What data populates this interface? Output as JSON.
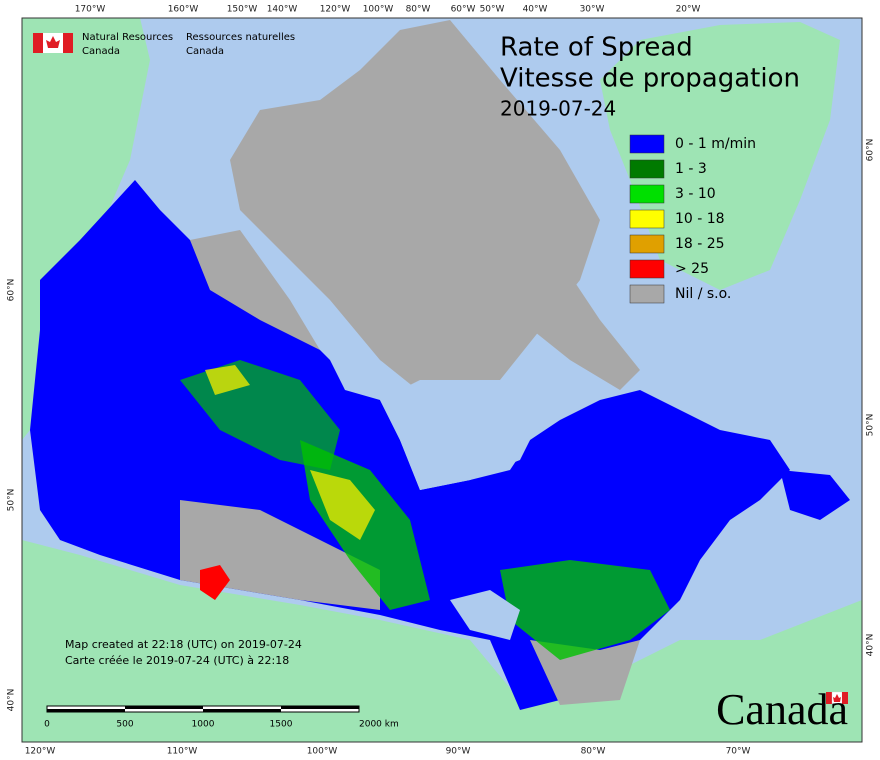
{
  "agency": {
    "english": [
      "Natural Resources",
      "Canada"
    ],
    "french": [
      "Ressources naturelles",
      "Canada"
    ]
  },
  "title": {
    "lines": [
      "Rate of Spread",
      "Vitesse de propagation"
    ],
    "date": "2019-07-24"
  },
  "legend": [
    {
      "label": "0 - 1 m/min",
      "color": "#0000ff"
    },
    {
      "label": "1 - 3",
      "color": "#007a00"
    },
    {
      "label": "3 - 10",
      "color": "#00e000"
    },
    {
      "label": "10 - 18",
      "color": "#ffff00"
    },
    {
      "label": "18 - 25",
      "color": "#e0a000"
    },
    {
      "label": "> 25",
      "color": "#ff0000"
    },
    {
      "label": "Nil / s.o.",
      "color": "#a8a8a8"
    }
  ],
  "graticule": {
    "top": [
      "170°W",
      "160°W",
      "150°W",
      "140°W",
      "120°W",
      "100°W",
      "80°W",
      "60°W",
      "50°W",
      "40°W",
      "30°W",
      "20°W"
    ],
    "bottom": [
      "120°W",
      "110°W",
      "100°W",
      "90°W",
      "80°W",
      "70°W"
    ],
    "left": [
      "60°N",
      "50°N",
      "40°N"
    ],
    "right": [
      "60°N",
      "50°N",
      "40°N"
    ]
  },
  "credits": [
    "Map created at 22:18 (UTC) on 2019-07-24",
    "Carte créée le 2019-07-24 (UTC) à 22:18"
  ],
  "scale_bar": [
    "0",
    "500",
    "1000",
    "1500",
    "2000 km"
  ],
  "wordmark": "Canada"
}
